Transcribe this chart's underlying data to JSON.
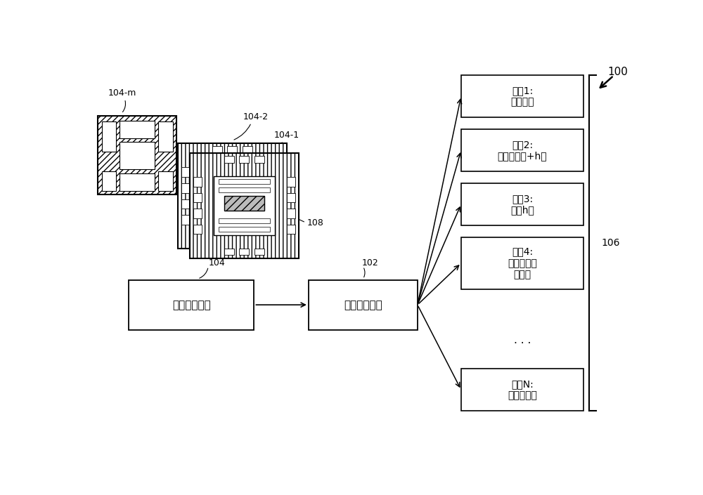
{
  "bg_color": "#ffffff",
  "fig_width": 10.0,
  "fig_height": 7.05,
  "label_100": "100",
  "label_106": "106",
  "label_102": "102",
  "label_104": "104",
  "label_104_1": "104-1",
  "label_104_2": "104-2",
  "label_104_m": "104-m",
  "label_108": "108",
  "box_input_text": "输入布局文件",
  "box_ml_text": "机器学习模型",
  "cat_labels": [
    "类别1:\n创建分叉",
    "类别2:\n双曲柄移动+h形",
    "类别3:\n创建h形",
    "类别4:\n在边缘添加\n水平线",
    "类别N:\n移除小曲柄"
  ],
  "line_color": "#000000",
  "text_color": "#000000",
  "font_size_box": 11,
  "font_size_ref": 9,
  "font_size_cat": 10
}
